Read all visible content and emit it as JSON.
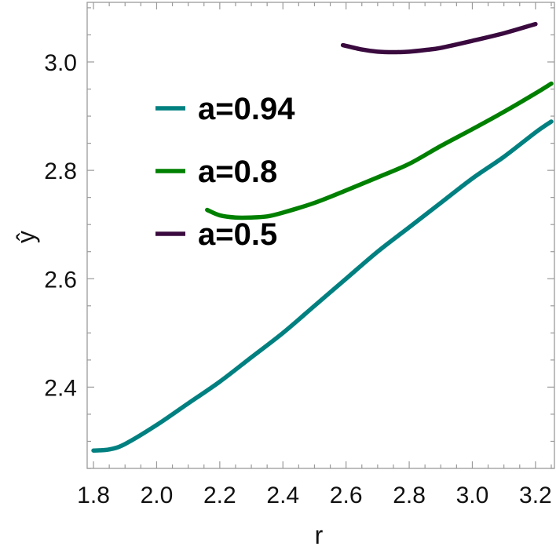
{
  "chart_data": {
    "type": "line",
    "title": "",
    "xlabel": "r",
    "ylabel": "ŷ",
    "xlim": [
      1.78,
      3.26
    ],
    "ylim": [
      2.25,
      3.11
    ],
    "xticks": [
      "1.8",
      "2.0",
      "2.2",
      "2.4",
      "2.6",
      "2.8",
      "3.0",
      "3.2"
    ],
    "yticks": [
      "2.4",
      "2.6",
      "2.8",
      "3.0"
    ],
    "grid": false,
    "legend_position": "upper-left inside plot",
    "series": [
      {
        "name": "a=0.94",
        "color": "#008080",
        "x": [
          1.8,
          1.85,
          1.9,
          2.0,
          2.1,
          2.2,
          2.3,
          2.4,
          2.5,
          2.6,
          2.7,
          2.8,
          2.9,
          3.0,
          3.1,
          3.2,
          3.25
        ],
        "y": [
          2.283,
          2.285,
          2.295,
          2.33,
          2.37,
          2.41,
          2.455,
          2.5,
          2.55,
          2.6,
          2.65,
          2.695,
          2.74,
          2.785,
          2.825,
          2.87,
          2.89
        ]
      },
      {
        "name": "a=0.8",
        "color": "#008000",
        "x": [
          2.16,
          2.2,
          2.25,
          2.3,
          2.35,
          2.4,
          2.5,
          2.6,
          2.7,
          2.8,
          2.9,
          3.0,
          3.1,
          3.2,
          3.25
        ],
        "y": [
          2.727,
          2.717,
          2.713,
          2.713,
          2.715,
          2.722,
          2.74,
          2.763,
          2.787,
          2.812,
          2.845,
          2.876,
          2.908,
          2.942,
          2.96
        ]
      },
      {
        "name": "a=0.5",
        "color": "#3a0a3f",
        "x": [
          2.59,
          2.65,
          2.7,
          2.75,
          2.8,
          2.85,
          2.9,
          3.0,
          3.1,
          3.2
        ],
        "y": [
          3.031,
          3.023,
          3.019,
          3.018,
          3.019,
          3.022,
          3.026,
          3.039,
          3.053,
          3.07
        ]
      }
    ]
  }
}
